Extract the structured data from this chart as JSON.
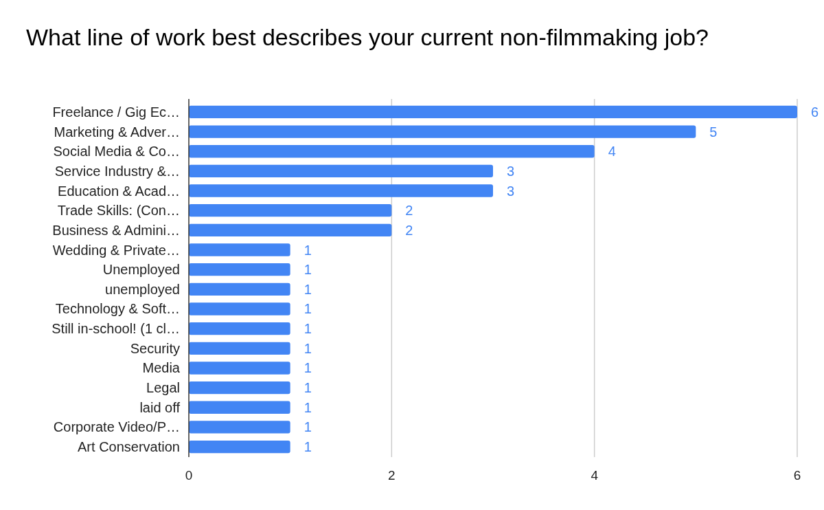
{
  "chart_data": {
    "type": "bar",
    "orientation": "horizontal",
    "title": "What line of work best describes your current non-filmmaking job?",
    "categories": [
      "Freelance / Gig Ec…",
      "Marketing & Adver…",
      "Social Media & Co…",
      "Service Industry &…",
      "Education & Acad…",
      "Trade Skills: (Con…",
      "Business & Admini…",
      "Wedding & Private…",
      "Unemployed",
      "unemployed",
      "Technology & Soft…",
      "Still in-school! (1 cl…",
      "Security",
      "Media",
      "Legal",
      "laid off",
      "Corporate Video/P…",
      "Art Conservation"
    ],
    "values": [
      6,
      5,
      4,
      3,
      3,
      2,
      2,
      1,
      1,
      1,
      1,
      1,
      1,
      1,
      1,
      1,
      1,
      1
    ],
    "color": "#4285f4",
    "xlim": [
      0,
      6
    ],
    "xticks": [
      0,
      2,
      4,
      6
    ],
    "grid": "x",
    "data_labels": true
  }
}
